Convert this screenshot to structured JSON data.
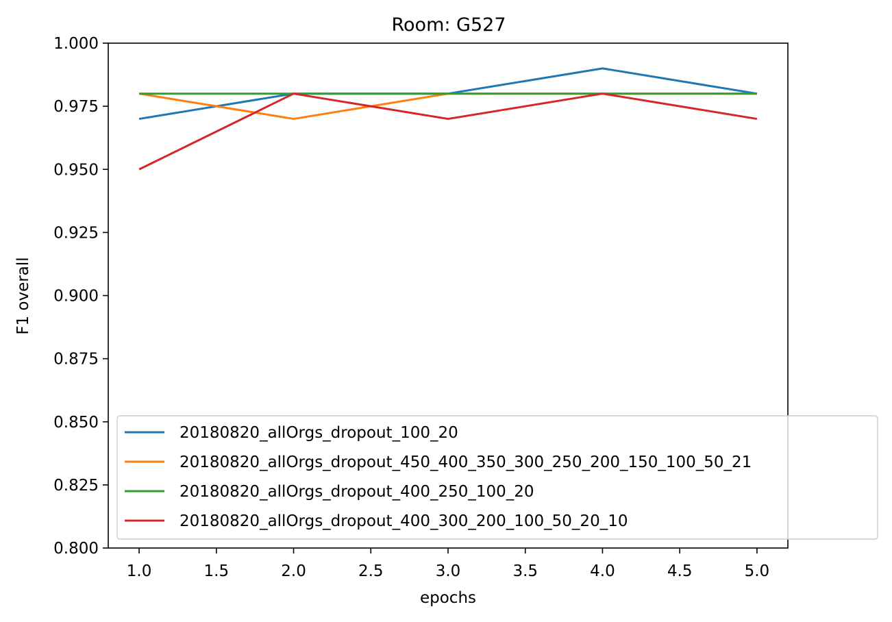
{
  "chart_data": {
    "type": "line",
    "title": "Room: G527",
    "xlabel": "epochs",
    "ylabel": "F1 overall",
    "xlim": [
      0.8,
      5.2
    ],
    "ylim": [
      0.8,
      1.0
    ],
    "x": [
      1,
      2,
      3,
      4,
      5
    ],
    "x_ticks": [
      1.0,
      1.5,
      2.0,
      2.5,
      3.0,
      3.5,
      4.0,
      4.5,
      5.0
    ],
    "x_tick_labels": [
      "1.0",
      "1.5",
      "2.0",
      "2.5",
      "3.0",
      "3.5",
      "4.0",
      "4.5",
      "5.0"
    ],
    "y_ticks": [
      0.8,
      0.825,
      0.85,
      0.875,
      0.9,
      0.925,
      0.95,
      0.975,
      1.0
    ],
    "y_tick_labels": [
      "0.800",
      "0.825",
      "0.850",
      "0.875",
      "0.900",
      "0.925",
      "0.950",
      "0.975",
      "1.000"
    ],
    "grid": false,
    "legend_position": "lower-right",
    "series": [
      {
        "name": "20180820_allOrgs_dropout_100_20",
        "color": "#1f77b4",
        "values": [
          0.97,
          0.98,
          0.98,
          0.99,
          0.98
        ]
      },
      {
        "name": "20180820_allOrgs_dropout_450_400_350_300_250_200_150_100_50_21",
        "color": "#ff7f0e",
        "values": [
          0.98,
          0.97,
          0.98,
          0.98,
          0.98
        ]
      },
      {
        "name": "20180820_allOrgs_dropout_400_250_100_20",
        "color": "#2ca02c",
        "values": [
          0.98,
          0.98,
          0.98,
          0.98,
          0.98
        ]
      },
      {
        "name": "20180820_allOrgs_dropout_400_300_200_100_50_20_10",
        "color": "#d62728",
        "values": [
          0.95,
          0.98,
          0.97,
          0.98,
          0.97
        ]
      }
    ]
  }
}
